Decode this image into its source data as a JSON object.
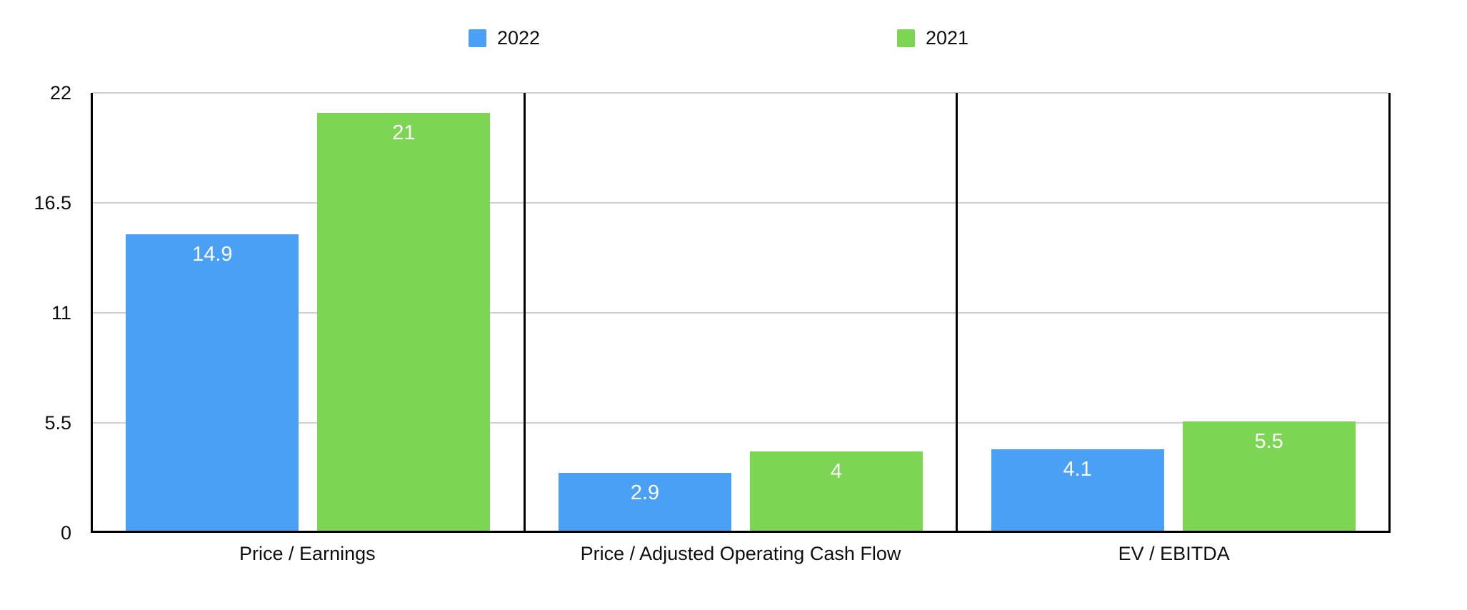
{
  "colors": {
    "series_2022": "#4AA0F5",
    "series_2021": "#7DD554",
    "grid": "#cfcfcf",
    "axis": "#000000",
    "bar_value_text": "#ffffff",
    "background": "#ffffff"
  },
  "legend": {
    "items": [
      {
        "label": "2022",
        "color": "#4AA0F5"
      },
      {
        "label": "2021",
        "color": "#7DD554"
      }
    ]
  },
  "chart_data": {
    "type": "bar",
    "title": "",
    "xlabel": "",
    "ylabel": "",
    "categories": [
      "Price / Earnings",
      "Price / Adjusted Operating Cash Flow",
      "EV / EBITDA"
    ],
    "series": [
      {
        "name": "2022",
        "color": "#4AA0F5",
        "values": [
          14.9,
          2.9,
          4.1
        ],
        "value_labels": [
          "14.9",
          "2.9",
          "4.1"
        ]
      },
      {
        "name": "2021",
        "color": "#7DD554",
        "values": [
          21,
          4,
          5.5
        ],
        "value_labels": [
          "21",
          "4",
          "5.5"
        ]
      }
    ],
    "ylim": [
      0,
      22
    ],
    "y_ticks": [
      0,
      5.5,
      11,
      16.5,
      22
    ],
    "y_tick_labels": [
      "0",
      "5.5",
      "11",
      "16.5",
      "22"
    ],
    "grid": "horizontal",
    "legend_position": "top",
    "value_labels_shown": true
  }
}
